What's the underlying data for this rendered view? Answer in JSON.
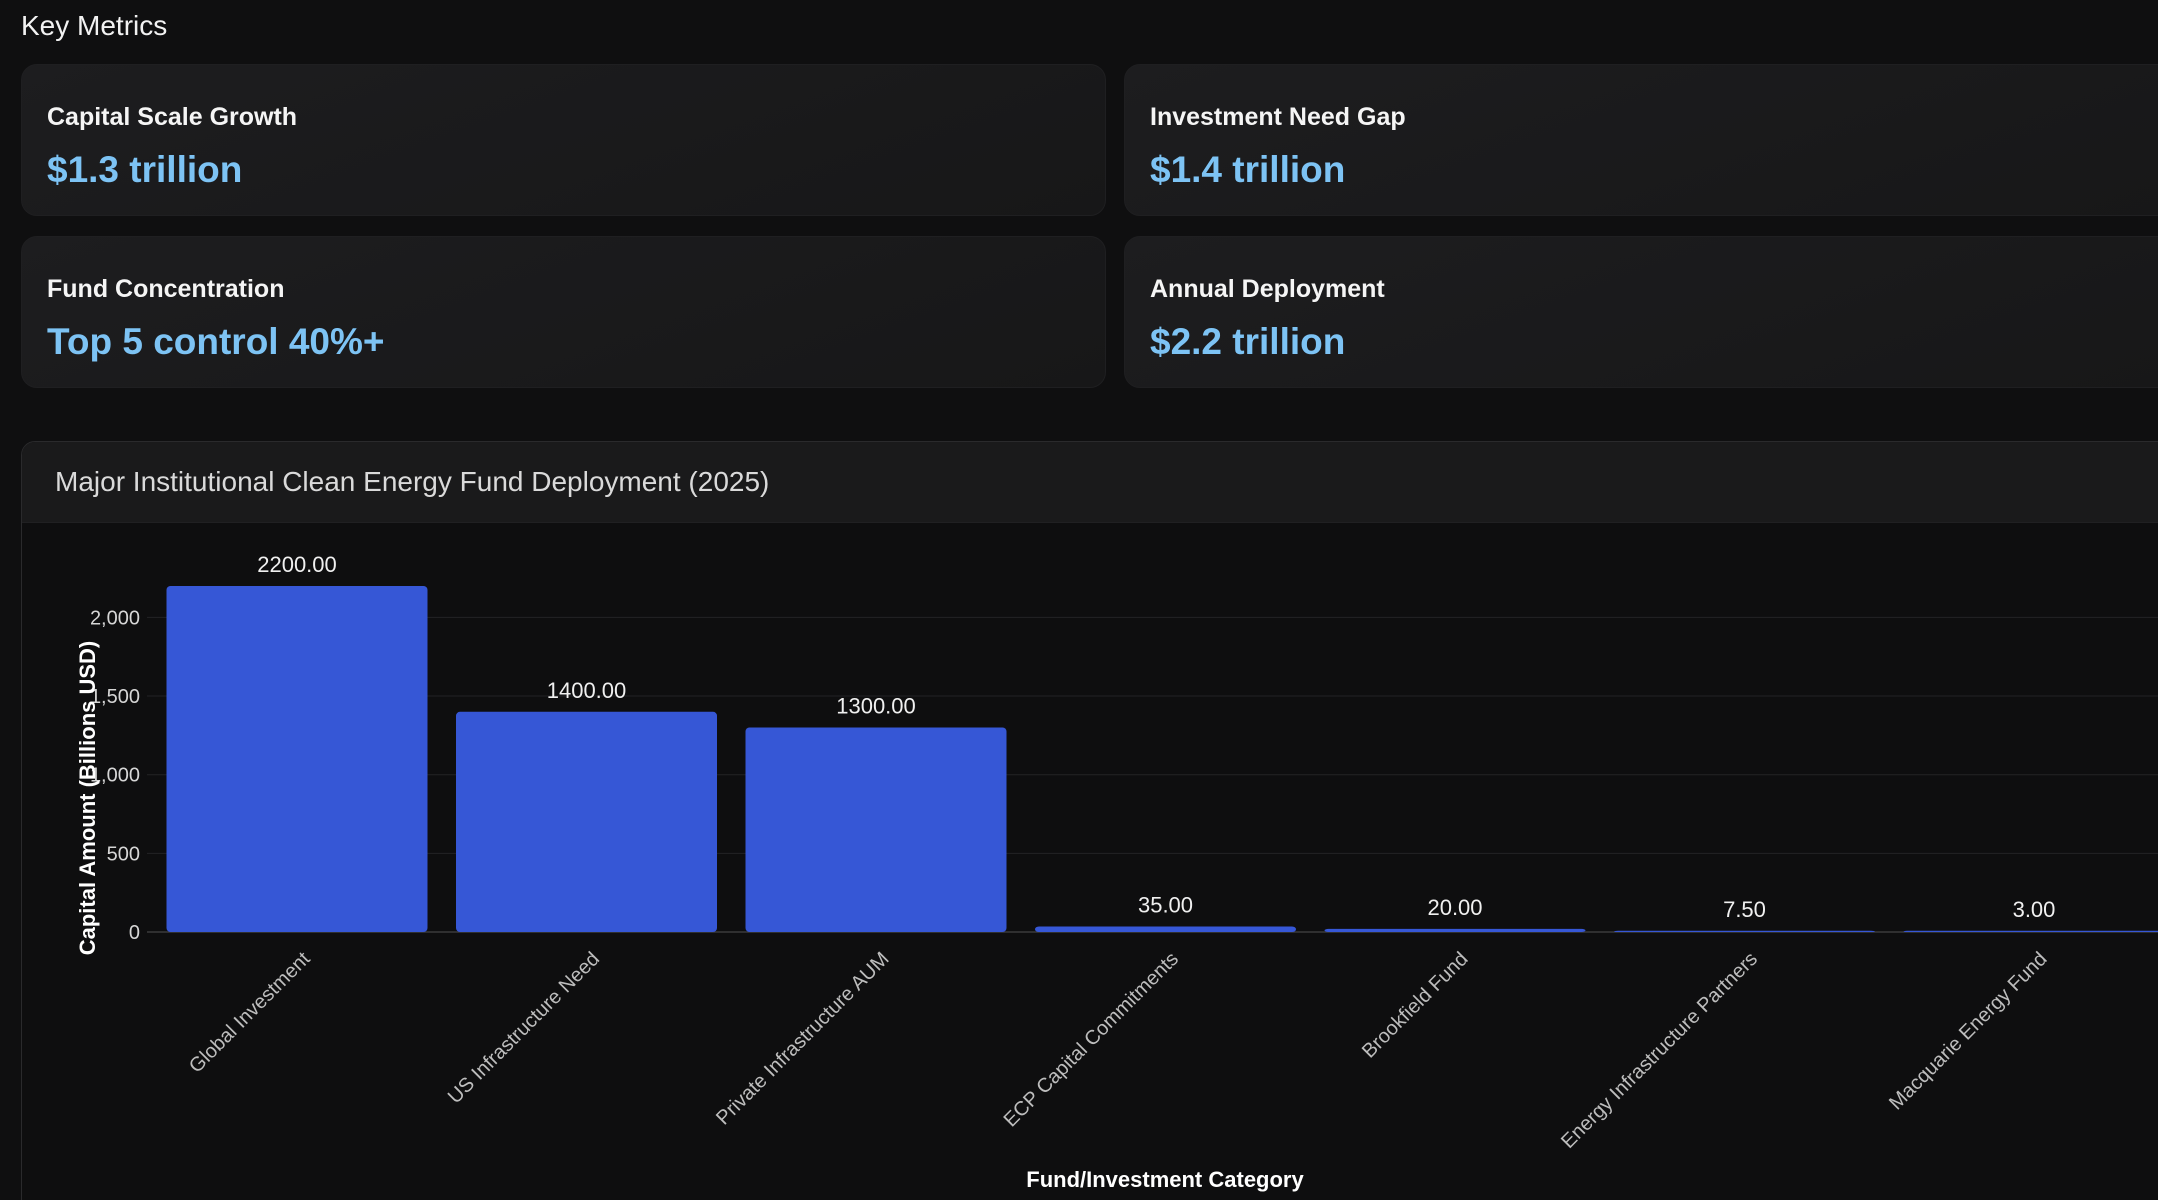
{
  "section": {
    "title": "Key Metrics"
  },
  "metrics": [
    {
      "label": "Capital Scale Growth",
      "value": "$1.3 trillion"
    },
    {
      "label": "Investment Need Gap",
      "value": "$1.4 trillion"
    },
    {
      "label": "Fund Concentration",
      "value": "Top 5 control 40%+"
    },
    {
      "label": "Annual Deployment",
      "value": "$2.2 trillion"
    }
  ],
  "colors": {
    "accent_value": "#7dc3f4",
    "bar": "#3657d6"
  },
  "chart_data": {
    "type": "bar",
    "title": "Major Institutional Clean Energy Fund Deployment (2025)",
    "xlabel": "Fund/Investment Category",
    "ylabel": "Capital Amount (Billions USD)",
    "categories": [
      "Global Investment",
      "US Infrastructure Need",
      "Private Infrastructure AUM",
      "ECP Capital Commitments",
      "Brookfield Fund",
      "Energy Infrastructure Partners",
      "Macquarie Energy Fund"
    ],
    "values": [
      2200,
      1400,
      1300,
      35,
      20,
      7.5,
      3
    ],
    "data_labels": [
      "2200.00",
      "1400.00",
      "1300.00",
      "35.00",
      "20.00",
      "7.50",
      "3.00"
    ],
    "yticks": [
      0,
      500,
      1000,
      1500,
      2000
    ],
    "ytick_labels": [
      "0",
      "500",
      "1,000",
      "1,500",
      "2,000"
    ],
    "ylim": [
      0,
      2200
    ],
    "grid": true
  }
}
